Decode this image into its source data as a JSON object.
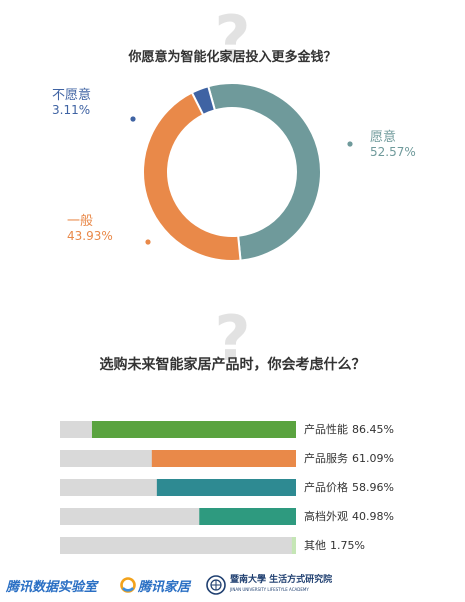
{
  "section1": {
    "question": "你愿意为智能化家居投入更多金钱？",
    "watermark": "?"
  },
  "section2": {
    "question": "选购未来智能家居产品时，你会考虑什么？",
    "watermark": "?"
  },
  "chart_data": [
    {
      "type": "pie",
      "variant": "donut",
      "title": "你愿意为智能化家居投入更多金钱？",
      "slices": [
        {
          "label": "愿意",
          "value": 52.57,
          "display": "52.57%",
          "color": "#6f9a9b"
        },
        {
          "label": "一般",
          "value": 43.93,
          "display": "43.93%",
          "color": "#e98949"
        },
        {
          "label": "不愿意",
          "value": 3.11,
          "display": "3.11%",
          "color": "#3f63a3"
        }
      ]
    },
    {
      "type": "bar",
      "orientation": "horizontal",
      "title": "选购未来智能家居产品时，你会考虑什么？",
      "xlim": [
        0,
        100
      ],
      "categories": [
        "产品性能",
        "产品服务",
        "产品价格",
        "高档外观",
        "其他"
      ],
      "values": [
        86.45,
        61.09,
        58.96,
        40.98,
        1.75
      ],
      "display": [
        "86.45%",
        "61.09%",
        "58.96%",
        "40.98%",
        "1.75%"
      ],
      "colors": [
        "#5aa33f",
        "#e98949",
        "#2e8a92",
        "#2e9a7f",
        "#c5e6b5"
      ],
      "track_color": "#d9d9d9"
    }
  ],
  "footer": {
    "logo1": "腾讯数据实验室",
    "logo2": "腾讯家居",
    "logo3_cn": "暨南大學 生活方式研究院",
    "logo3_en": "JINAN UNIVERSITY LIFESTYLE ACADEMY"
  }
}
